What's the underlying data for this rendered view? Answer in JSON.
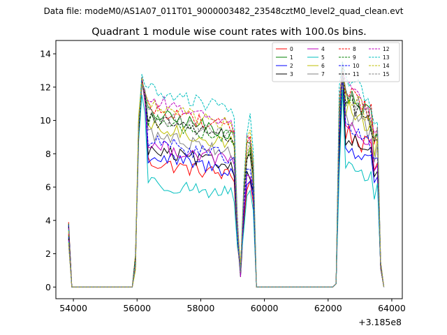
{
  "suptitle": "Data file: modeM0/AS1A07_011T01_9000003482_23548cztM0_level2_quad_clean.evt",
  "chart_data": {
    "type": "line",
    "title": "Quadrant 1 module wise count rates with 100.0s bins.",
    "xlabel": "",
    "ylabel": "",
    "x_offset_label": "+3.185e8",
    "xlim": [
      53450,
      64330
    ],
    "ylim": [
      -0.7,
      14.8
    ],
    "xticks": [
      54000,
      56000,
      58000,
      60000,
      62000,
      64000
    ],
    "xtick_labels": [
      "54000",
      "56000",
      "58000",
      "60000",
      "62000",
      "64000"
    ],
    "yticks": [
      0,
      2,
      4,
      6,
      8,
      10,
      12,
      14
    ],
    "ytick_labels": [
      "0",
      "2",
      "4",
      "6",
      "8",
      "10",
      "12",
      "14"
    ],
    "grid": false,
    "legend_position": "top-right",
    "legend_columns": 4,
    "series": [
      {
        "name": "0",
        "color": "#ff0000",
        "dash": "solid",
        "level": 6.7,
        "peak": 12.4,
        "level2": 8.8
      },
      {
        "name": "1",
        "color": "#008000",
        "dash": "solid",
        "level": 9.3,
        "peak": 12.3,
        "level2": 11.0
      },
      {
        "name": "2",
        "color": "#0000ff",
        "dash": "solid",
        "level": 7.0,
        "peak": 12.2,
        "level2": 8.0
      },
      {
        "name": "3",
        "color": "#000000",
        "dash": "solid",
        "level": 7.3,
        "peak": 12.1,
        "level2": 8.5
      },
      {
        "name": "4",
        "color": "#bf00bf",
        "dash": "solid",
        "level": 7.6,
        "peak": 12.3,
        "level2": 9.0
      },
      {
        "name": "5",
        "color": "#00bfbf",
        "dash": "solid",
        "level": 5.6,
        "peak": 11.5,
        "level2": 6.9
      },
      {
        "name": "6",
        "color": "#bfbf00",
        "dash": "solid",
        "level": 8.6,
        "peak": 12.5,
        "level2": 10.2
      },
      {
        "name": "7",
        "color": "#808080",
        "dash": "solid",
        "level": 8.2,
        "peak": 12.2,
        "level2": 9.8
      },
      {
        "name": "8",
        "color": "#ff0000",
        "dash": "dashed",
        "level": 9.6,
        "peak": 12.4,
        "level2": 11.2
      },
      {
        "name": "9",
        "color": "#008000",
        "dash": "dashed",
        "level": 9.0,
        "peak": 12.4,
        "level2": 10.8
      },
      {
        "name": "10",
        "color": "#0000ff",
        "dash": "dashed",
        "level": 7.8,
        "peak": 12.3,
        "level2": 9.2
      },
      {
        "name": "11",
        "color": "#000000",
        "dash": "dashed",
        "level": 9.0,
        "peak": 12.6,
        "level2": 10.6
      },
      {
        "name": "12",
        "color": "#bf00bf",
        "dash": "dashed",
        "level": 10.0,
        "peak": 12.6,
        "level2": 11.3
      },
      {
        "name": "13",
        "color": "#00bfbf",
        "dash": "dashed",
        "level": 10.6,
        "peak": 13.0,
        "level2": 12.0
      },
      {
        "name": "14",
        "color": "#bfbf00",
        "dash": "dashed",
        "level": 9.7,
        "peak": 12.5,
        "level2": 11.0
      },
      {
        "name": "15",
        "color": "#808080",
        "dash": "dashed",
        "level": 9.2,
        "peak": 12.4,
        "level2": 10.9
      }
    ]
  }
}
